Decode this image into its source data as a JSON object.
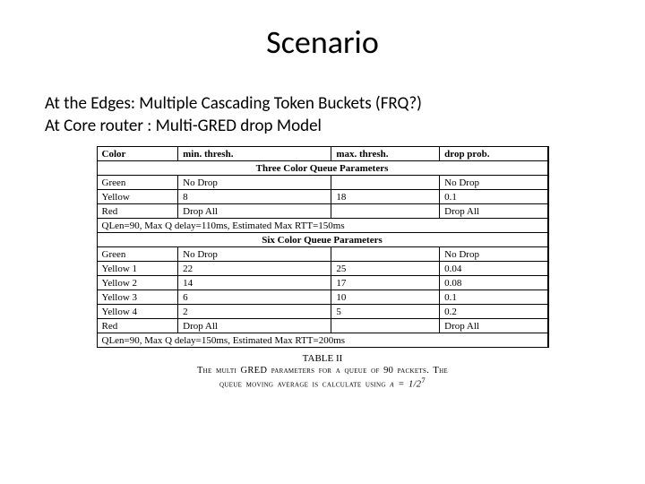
{
  "title": "Scenario",
  "subtitle_line1": "At the Edges: Multiple Cascading Token Buckets (FRQ?)",
  "subtitle_line2": "At Core router : Multi-GRED drop Model",
  "table": {
    "headers": [
      "Color",
      "min. thresh.",
      "max. thresh.",
      "drop prob."
    ],
    "section1_title": "Three Color Queue Parameters",
    "section1_rows": [
      [
        "Green",
        "No Drop",
        "",
        "No Drop"
      ],
      [
        "Yellow",
        "8",
        "18",
        "0.1"
      ],
      [
        "Red",
        "Drop All",
        "",
        "Drop All"
      ]
    ],
    "note1": "QLen=90, Max Q delay=110ms, Estimated Max RTT=150ms",
    "section2_title": "Six Color Queue Parameters",
    "section2_rows": [
      [
        "Green",
        "No Drop",
        "",
        "No Drop"
      ],
      [
        "Yellow 1",
        "22",
        "25",
        "0.04"
      ],
      [
        "Yellow 2",
        "14",
        "17",
        "0.08"
      ],
      [
        "Yellow 3",
        "6",
        "10",
        "0.1"
      ],
      [
        "Yellow 4",
        "2",
        "5",
        "0.2"
      ],
      [
        "Red",
        "Drop All",
        "",
        "Drop All"
      ]
    ],
    "note2": "QLen=90, Max Q delay=150ms, Estimated Max RTT=200ms"
  },
  "caption": {
    "table_label": "TABLE II",
    "line1": "The multi GRED parameters for a queue of 90 packets. The",
    "line2_prefix": "queue moving average is calculate using ",
    "alpha": "α = 1/2",
    "exp": "7"
  }
}
